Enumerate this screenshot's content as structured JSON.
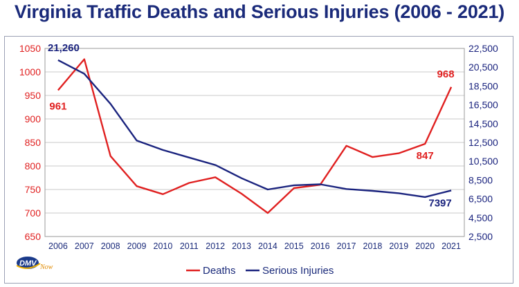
{
  "chart_data": {
    "type": "line",
    "title": "Virginia Traffic Deaths and Serious Injuries (2006 - 2021)",
    "categories": [
      "2006",
      "2007",
      "2008",
      "2009",
      "2010",
      "2011",
      "2012",
      "2013",
      "2014",
      "2015",
      "2016",
      "2017",
      "2018",
      "2019",
      "2020",
      "2021"
    ],
    "series": [
      {
        "name": "Deaths",
        "axis": "left",
        "color": "#e02020",
        "values": [
          961,
          1027,
          821,
          757,
          740,
          764,
          776,
          741,
          700,
          753,
          760,
          843,
          819,
          827,
          847,
          968
        ]
      },
      {
        "name": "Serious Injuries",
        "axis": "right",
        "color": "#1a237e",
        "values": [
          21260,
          19800,
          16600,
          12700,
          11700,
          10900,
          10100,
          8700,
          7500,
          7950,
          8050,
          7550,
          7350,
          7100,
          6700,
          7397
        ]
      }
    ],
    "y_left": {
      "ticks": [
        "650",
        "700",
        "750",
        "800",
        "850",
        "900",
        "950",
        "1000",
        "1050"
      ],
      "range": [
        650,
        1050
      ],
      "color": "#e02020"
    },
    "y_right": {
      "ticks": [
        "2,500",
        "4,500",
        "6,500",
        "8,500",
        "10,500",
        "12,500",
        "14,500",
        "16,500",
        "18,500",
        "20,500",
        "22,500"
      ],
      "range": [
        2500,
        22500
      ],
      "color": "#1a237e"
    },
    "data_labels": [
      {
        "series": "Deaths",
        "index": 0,
        "text": "961"
      },
      {
        "series": "Deaths",
        "index": 14,
        "text": "847"
      },
      {
        "series": "Deaths",
        "index": 15,
        "text": "968"
      },
      {
        "series": "Serious Injuries",
        "index": 0,
        "text": "21,260"
      },
      {
        "series": "Serious Injuries",
        "index": 15,
        "text": "7397"
      }
    ],
    "legend": {
      "position": "bottom",
      "items": [
        "Deaths",
        "Serious Injuries"
      ]
    },
    "grid": true
  },
  "logo": {
    "text": "DMV",
    "subtext": "Now"
  }
}
